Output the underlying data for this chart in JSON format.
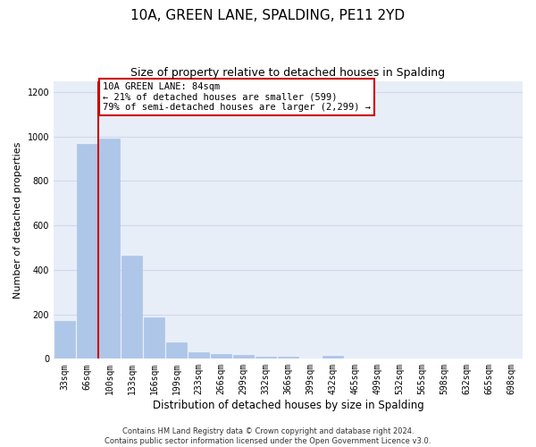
{
  "title": "10A, GREEN LANE, SPALDING, PE11 2YD",
  "subtitle": "Size of property relative to detached houses in Spalding",
  "xlabel": "Distribution of detached houses by size in Spalding",
  "ylabel": "Number of detached properties",
  "categories": [
    "33sqm",
    "66sqm",
    "100sqm",
    "133sqm",
    "166sqm",
    "199sqm",
    "233sqm",
    "266sqm",
    "299sqm",
    "332sqm",
    "366sqm",
    "399sqm",
    "432sqm",
    "465sqm",
    "499sqm",
    "532sqm",
    "565sqm",
    "598sqm",
    "632sqm",
    "665sqm",
    "698sqm"
  ],
  "values": [
    170,
    965,
    990,
    465,
    185,
    75,
    30,
    22,
    18,
    10,
    8,
    0,
    15,
    0,
    0,
    0,
    0,
    0,
    0,
    0,
    0
  ],
  "bar_color": "#aec6e8",
  "bar_edge_color": "#aec6e8",
  "redline_x": 1.5,
  "annotation_text": "10A GREEN LANE: 84sqm\n← 21% of detached houses are smaller (599)\n79% of semi-detached houses are larger (2,299) →",
  "annotation_box_color": "#ffffff",
  "annotation_box_edge_color": "#cc0000",
  "redline_color": "#cc0000",
  "ylim": [
    0,
    1250
  ],
  "yticks": [
    0,
    200,
    400,
    600,
    800,
    1000,
    1200
  ],
  "grid_color": "#d0d8e8",
  "background_color": "#e8eef8",
  "fig_background_color": "#ffffff",
  "footer_text": "Contains HM Land Registry data © Crown copyright and database right 2024.\nContains public sector information licensed under the Open Government Licence v3.0.",
  "title_fontsize": 11,
  "subtitle_fontsize": 9,
  "xlabel_fontsize": 8.5,
  "ylabel_fontsize": 8,
  "tick_fontsize": 7,
  "annotation_fontsize": 7.5,
  "footer_fontsize": 6
}
